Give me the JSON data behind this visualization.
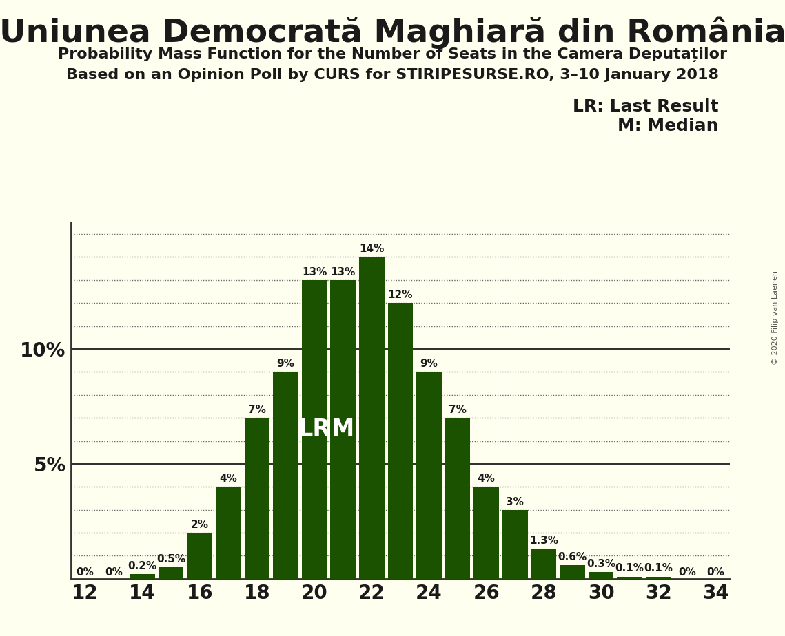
{
  "title": "Uniunea Democrată Maghiară din România",
  "subtitle1": "Probability Mass Function for the Number of Seats in the Camera Deputaților",
  "subtitle2": "Based on an Opinion Poll by CURS for STIRIPESURSE.RO, 3–10 January 2018",
  "copyright": "© 2020 Filip van Laenen",
  "seats": [
    12,
    13,
    14,
    15,
    16,
    17,
    18,
    19,
    20,
    21,
    22,
    23,
    24,
    25,
    26,
    27,
    28,
    29,
    30,
    31,
    32,
    33,
    34
  ],
  "probabilities": [
    0.0,
    0.0,
    0.2,
    0.5,
    2.0,
    4.0,
    7.0,
    9.0,
    13.0,
    13.0,
    14.0,
    12.0,
    9.0,
    7.0,
    4.0,
    3.0,
    1.3,
    0.6,
    0.3,
    0.1,
    0.1,
    0.0,
    0.0
  ],
  "labels": [
    "0%",
    "0%",
    "0.2%",
    "0.5%",
    "2%",
    "4%",
    "7%",
    "9%",
    "13%",
    "13%",
    "14%",
    "12%",
    "9%",
    "7%",
    "4%",
    "3%",
    "1.3%",
    "0.6%",
    "0.3%",
    "0.1%",
    "0.1%",
    "0%",
    "0%"
  ],
  "last_result": 20,
  "median": 21,
  "bar_color": "#1a5200",
  "background_color": "#fffff0",
  "text_color": "#1a1a1a",
  "lr_label": "LR: Last Result",
  "median_label": "M: Median",
  "xlim": [
    11.5,
    34.5
  ],
  "ylim": [
    0,
    15.5
  ],
  "yticks": [
    0,
    5,
    10
  ],
  "ytick_labels": [
    "",
    "5%",
    "10%"
  ],
  "xticks": [
    12,
    14,
    16,
    18,
    20,
    22,
    24,
    26,
    28,
    30,
    32,
    34
  ],
  "bar_width": 0.88,
  "title_fontsize": 34,
  "subtitle_fontsize": 16,
  "tick_fontsize": 20,
  "label_fontsize": 11,
  "lr_m_fontsize": 24,
  "legend_fontsize": 18
}
